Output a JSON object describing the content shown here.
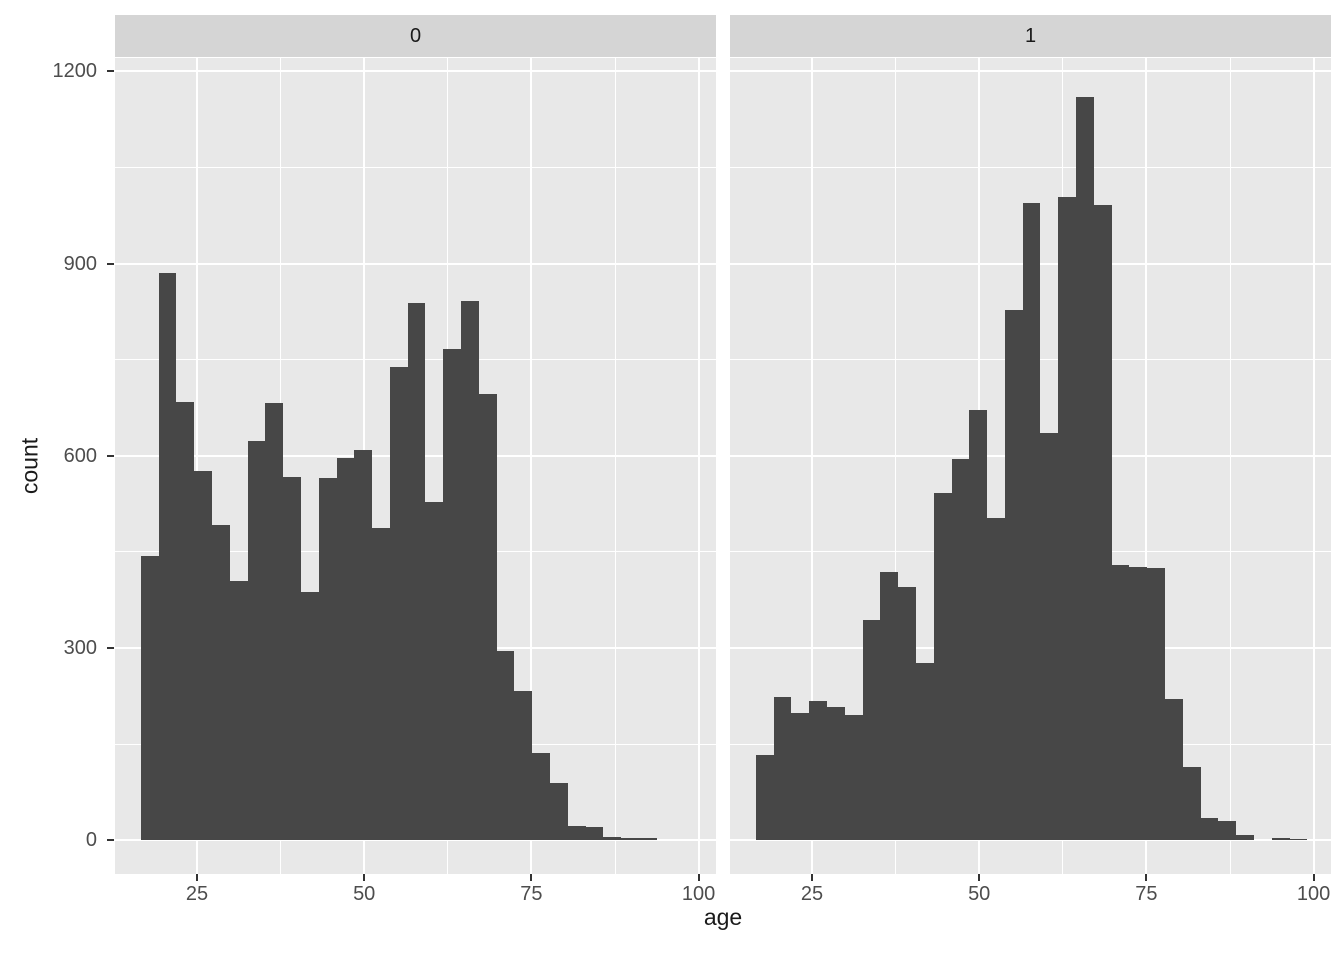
{
  "chart_data": {
    "type": "histogram",
    "faceted": true,
    "facet_labels": [
      "0",
      "1"
    ],
    "xlabel": "age",
    "ylabel": "count",
    "x_ticks": [
      25,
      50,
      75,
      100
    ],
    "x_minor_gridlines": [
      37.5,
      62.5,
      87.5
    ],
    "y_ticks": [
      0,
      300,
      600,
      900,
      1200
    ],
    "y_minor_gridlines": [
      150,
      450,
      750,
      1050
    ],
    "x_range_shown": [
      12.8,
      103.4
    ],
    "y_range_shown": [
      -53,
      1220
    ],
    "bin_start": 16.6,
    "binwidth": 2.66,
    "series": [
      {
        "facet": "0",
        "counts": [
          443,
          885,
          684,
          576,
          492,
          405,
          623,
          683,
          567,
          388,
          566,
          596,
          609,
          488,
          738,
          838,
          528,
          767,
          841,
          696,
          296,
          233,
          136,
          89,
          23,
          20,
          5,
          4,
          3
        ]
      },
      {
        "facet": "1",
        "counts": [
          133,
          224,
          198,
          217,
          208,
          195,
          343,
          419,
          395,
          277,
          542,
          595,
          672,
          503,
          827,
          995,
          636,
          1004,
          1160,
          991,
          430,
          427,
          425,
          220,
          114,
          35,
          30,
          8,
          0,
          3,
          2
        ]
      }
    ],
    "legend": "none",
    "grid": "on",
    "colors": {
      "bar": "#474747",
      "panel_background": "#e8e8e8",
      "strip_background": "#d5d5d5",
      "gridline": "#ffffff",
      "tick_text": "#4d4d4d",
      "axis_title_text": "#1a1a1a",
      "strip_text": "#1a1a1a",
      "tick_mark": "#333333",
      "outer_background": "#ffffff"
    }
  }
}
